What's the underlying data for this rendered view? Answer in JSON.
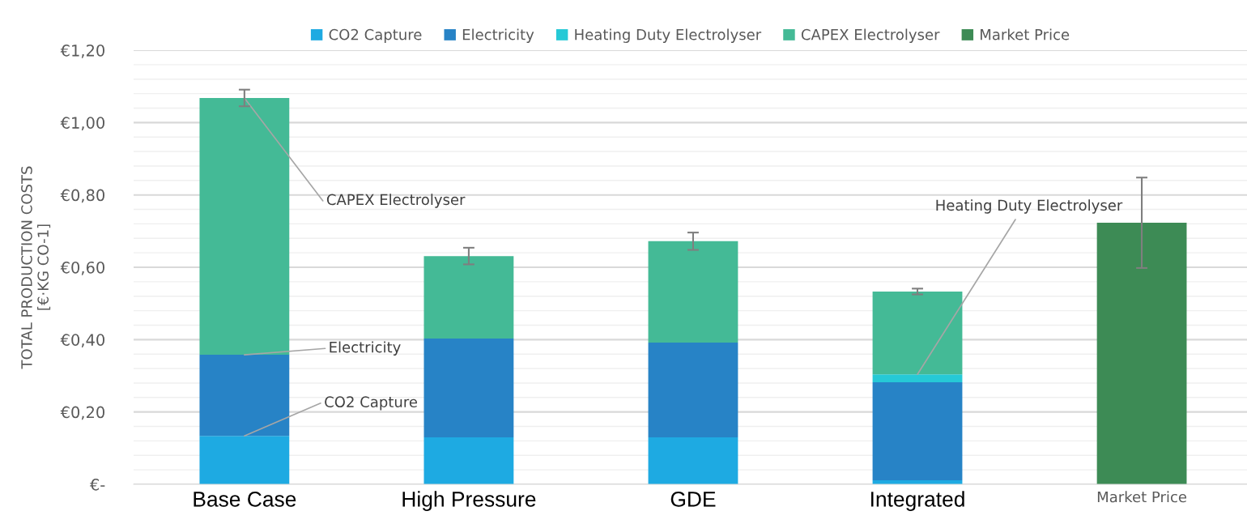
{
  "chart_data": {
    "type": "bar",
    "stacked": true,
    "ylabel": "TOTAL PRODUCTION COSTS\n[€·KG CO-1]",
    "categories": [
      "Base Case",
      "High Pressure",
      "GDE",
      "Integrated",
      "Market Price"
    ],
    "series": [
      {
        "name": "CO2 Capture",
        "color": "#1eaae2",
        "values": [
          0.134,
          0.13,
          0.13,
          0.011,
          null
        ]
      },
      {
        "name": "Electricity",
        "color": "#2783c6",
        "values": [
          0.224,
          0.273,
          0.262,
          0.271,
          null
        ]
      },
      {
        "name": "Heating Duty Electrolyser",
        "color": "#26c9d6",
        "values": [
          null,
          null,
          null,
          0.022,
          null
        ]
      },
      {
        "name": "CAPEX Electrolyser",
        "color": "#44ba96",
        "values": [
          0.71,
          0.228,
          0.28,
          0.229,
          null
        ],
        "errors": [
          0.023,
          0.023,
          0.024,
          0.008,
          null
        ]
      },
      {
        "name": "Market Price",
        "color": "#3d8b55",
        "values": [
          null,
          null,
          null,
          null,
          0.723
        ],
        "errors": [
          null,
          null,
          null,
          null,
          0.125
        ]
      }
    ],
    "ylim": [
      0,
      1.2
    ],
    "yticks": [
      {
        "value": 0,
        "label": "€-"
      },
      {
        "value": 0.04,
        "label": null
      },
      {
        "value": 0.08,
        "label": null
      },
      {
        "value": 0.12,
        "label": null
      },
      {
        "value": 0.16,
        "label": null
      },
      {
        "value": 0.2,
        "label": "€0,20"
      },
      {
        "value": 0.24,
        "label": null
      },
      {
        "value": 0.28,
        "label": null
      },
      {
        "value": 0.32,
        "label": null
      },
      {
        "value": 0.36,
        "label": null
      },
      {
        "value": 0.4,
        "label": "€0,40"
      },
      {
        "value": 0.44,
        "label": null
      },
      {
        "value": 0.48,
        "label": null
      },
      {
        "value": 0.52,
        "label": null
      },
      {
        "value": 0.56,
        "label": null
      },
      {
        "value": 0.6,
        "label": "€0,60"
      },
      {
        "value": 0.64,
        "label": null
      },
      {
        "value": 0.68,
        "label": null
      },
      {
        "value": 0.72,
        "label": null
      },
      {
        "value": 0.76,
        "label": null
      },
      {
        "value": 0.8,
        "label": "€0,80"
      },
      {
        "value": 0.84,
        "label": null
      },
      {
        "value": 0.88,
        "label": null
      },
      {
        "value": 0.92,
        "label": null
      },
      {
        "value": 0.96,
        "label": null
      },
      {
        "value": 1.0,
        "label": "€1,00"
      },
      {
        "value": 1.04,
        "label": null
      },
      {
        "value": 1.08,
        "label": null
      },
      {
        "value": 1.12,
        "label": null
      },
      {
        "value": 1.16,
        "label": null
      },
      {
        "value": 1.2,
        "label": "€1,20"
      }
    ],
    "grid": "y",
    "legend": "top",
    "annotations": [
      {
        "text": "CAPEX Electrolyser",
        "x": "Base Case",
        "y": 1.068
      },
      {
        "text": "Electricity",
        "x": "Base Case",
        "y": 0.358
      },
      {
        "text": "CO2 Capture",
        "x": "Base Case",
        "y": 0.134
      },
      {
        "text": "Heating Duty Electrolyser",
        "x": "Integrated",
        "y": 0.304
      }
    ]
  }
}
